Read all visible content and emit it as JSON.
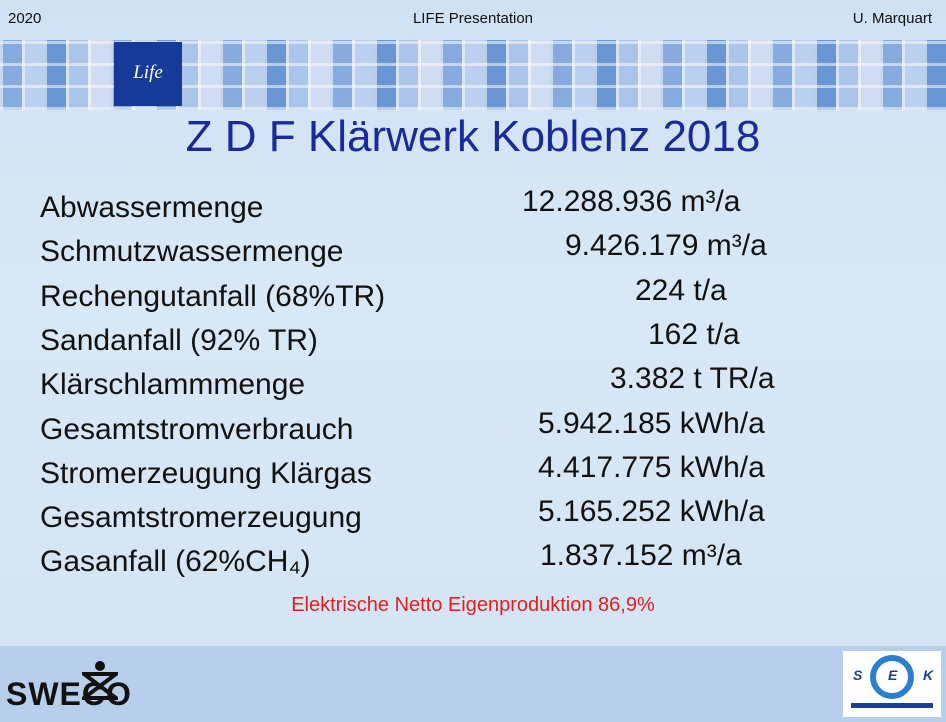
{
  "header": {
    "left": "2020",
    "center": "LIFE Presentation",
    "right": "U. Marquart"
  },
  "logo_life": "Life",
  "title": "Z D F Klärwerk Koblenz 2018",
  "rows": [
    {
      "label": "Abwassermenge",
      "value": "12.288.936 m³/a"
    },
    {
      "label": "Schmutzwassermenge",
      "value": "9.426.179 m³/a"
    },
    {
      "label": "Rechengutanfall (68%TR)",
      "value": "224 t/a"
    },
    {
      "label": "Sandanfall  (92% TR)",
      "value": "162 t/a"
    },
    {
      "label": "Klärschlammmenge",
      "value": "3.382 t TR/a"
    },
    {
      "label": "Gesamtstromverbrauch",
      "value": "5.942.185 kWh/a"
    },
    {
      "label": "Stromerzeugung Klärgas",
      "value": "4.417.775 kWh/a"
    },
    {
      "label": "Gesamtstromerzeugung",
      "value": "5.165.252 kWh/a"
    },
    {
      "label": "Gasanfall (62%CH₄)",
      "value": "1.837.152 m³/a"
    }
  ],
  "note": "Elektrische Netto Eigenproduktion 86,9%",
  "logo_sweco": "SWECO",
  "logo_sek": [
    "S",
    "E",
    "K"
  ]
}
